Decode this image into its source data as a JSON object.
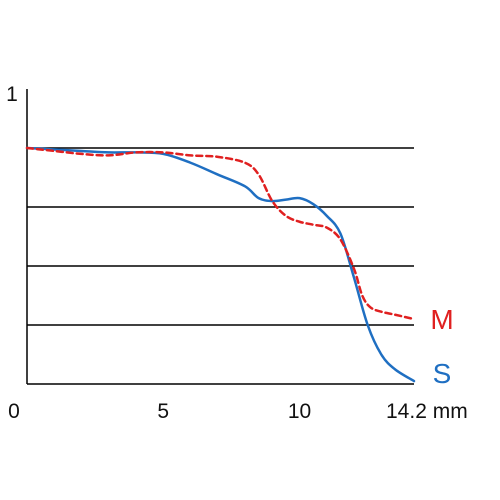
{
  "chart_data": {
    "type": "line",
    "xlim": [
      0,
      14.2
    ],
    "ylim": [
      0,
      1
    ],
    "x_ticks": [
      {
        "value": 0,
        "label": "0"
      },
      {
        "value": 5,
        "label": "5"
      },
      {
        "value": 10,
        "label": "10"
      },
      {
        "value": 14.2,
        "label": "14.2 mm"
      }
    ],
    "y_ticks": [
      {
        "value": 1,
        "label": "1"
      }
    ],
    "gridlines_y": [
      0.2,
      0.4,
      0.6,
      0.8
    ],
    "grid": "horizontal",
    "series": [
      {
        "name": "M",
        "color": "#e02020",
        "dash": "dashed",
        "points": [
          [
            0,
            0.8
          ],
          [
            1.0,
            0.79
          ],
          [
            2.0,
            0.78
          ],
          [
            3.0,
            0.775
          ],
          [
            4.0,
            0.785
          ],
          [
            5.0,
            0.785
          ],
          [
            6.0,
            0.775
          ],
          [
            7.0,
            0.77
          ],
          [
            8.0,
            0.75
          ],
          [
            8.5,
            0.71
          ],
          [
            9.0,
            0.62
          ],
          [
            9.5,
            0.57
          ],
          [
            10.0,
            0.55
          ],
          [
            10.5,
            0.54
          ],
          [
            11.0,
            0.53
          ],
          [
            11.5,
            0.49
          ],
          [
            12.0,
            0.39
          ],
          [
            12.3,
            0.3
          ],
          [
            12.6,
            0.26
          ],
          [
            13.0,
            0.245
          ],
          [
            13.5,
            0.235
          ],
          [
            14.2,
            0.22
          ]
        ]
      },
      {
        "name": "S",
        "color": "#1f6fc2",
        "dash": "solid",
        "points": [
          [
            0,
            0.8
          ],
          [
            1.0,
            0.795
          ],
          [
            2.0,
            0.79
          ],
          [
            3.0,
            0.785
          ],
          [
            4.0,
            0.785
          ],
          [
            5.0,
            0.78
          ],
          [
            6.0,
            0.75
          ],
          [
            7.0,
            0.71
          ],
          [
            8.0,
            0.67
          ],
          [
            8.5,
            0.63
          ],
          [
            9.0,
            0.62
          ],
          [
            9.5,
            0.625
          ],
          [
            10.0,
            0.63
          ],
          [
            10.5,
            0.61
          ],
          [
            11.0,
            0.57
          ],
          [
            11.5,
            0.51
          ],
          [
            12.0,
            0.36
          ],
          [
            12.5,
            0.2
          ],
          [
            13.0,
            0.1
          ],
          [
            13.5,
            0.05
          ],
          [
            14.2,
            0.01
          ]
        ]
      }
    ],
    "series_labels": [
      "M",
      "S"
    ]
  }
}
